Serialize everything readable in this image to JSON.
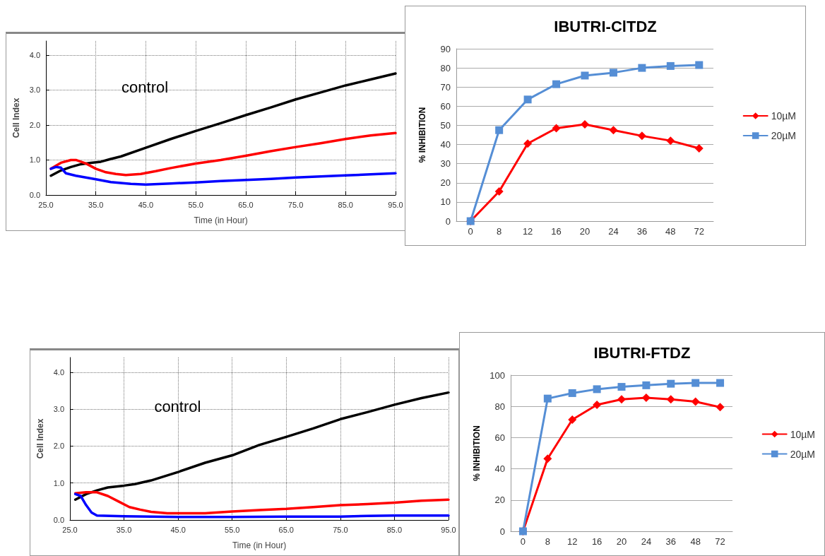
{
  "chart_data": [
    {
      "type": "line",
      "xlabel": "Time (in Hour)",
      "ylabel": "Cell Index",
      "xlim": [
        25,
        95
      ],
      "ylim": [
        0,
        4.4
      ],
      "xticks": [
        {
          "value": 25,
          "label": "25.0"
        },
        {
          "value": 35,
          "label": "35.0"
        },
        {
          "value": 45,
          "label": "45.0"
        },
        {
          "value": 55,
          "label": "55.0"
        },
        {
          "value": 65,
          "label": "65.0"
        },
        {
          "value": 75,
          "label": "75.0"
        },
        {
          "value": 85,
          "label": "85.0"
        },
        {
          "value": 95,
          "label": "95.0"
        }
      ],
      "yticks": [
        {
          "value": 0,
          "label": "0.0"
        },
        {
          "value": 1,
          "label": "1.0"
        },
        {
          "value": 2,
          "label": "2.0"
        },
        {
          "value": 3,
          "label": "3.0"
        },
        {
          "value": 4,
          "label": "4.0"
        }
      ],
      "grid": true,
      "legend": false,
      "marker": "none",
      "annotations": [
        "control"
      ],
      "series": [
        {
          "color": "#000000",
          "x": [
            26,
            28,
            30,
            32,
            34,
            36,
            38,
            40,
            45,
            50,
            55,
            60,
            65,
            70,
            75,
            80,
            85,
            90,
            95
          ],
          "values": [
            0.55,
            0.7,
            0.8,
            0.88,
            0.92,
            0.95,
            1.03,
            1.1,
            1.35,
            1.6,
            1.83,
            2.05,
            2.28,
            2.5,
            2.73,
            2.93,
            3.13,
            3.3,
            3.47
          ]
        },
        {
          "color": "#ff0000",
          "x": [
            26,
            28,
            30,
            31,
            33,
            35,
            37,
            39,
            41,
            44,
            47,
            50,
            55,
            60,
            65,
            70,
            75,
            80,
            85,
            90,
            95
          ],
          "values": [
            0.75,
            0.92,
            1.0,
            1.0,
            0.9,
            0.75,
            0.65,
            0.6,
            0.57,
            0.6,
            0.68,
            0.77,
            0.9,
            1.0,
            1.12,
            1.25,
            1.37,
            1.48,
            1.6,
            1.7,
            1.77
          ]
        },
        {
          "color": "#0000ff",
          "x": [
            26,
            27,
            28,
            29,
            31,
            35,
            38,
            42,
            45,
            50,
            55,
            60,
            65,
            70,
            75,
            80,
            85,
            90,
            95
          ],
          "values": [
            0.75,
            0.8,
            0.78,
            0.62,
            0.55,
            0.45,
            0.37,
            0.32,
            0.3,
            0.33,
            0.36,
            0.4,
            0.43,
            0.46,
            0.5,
            0.53,
            0.56,
            0.59,
            0.62
          ]
        }
      ]
    },
    {
      "type": "line",
      "title": "IBUTRI-ClTDZ",
      "ylabel": "% INHIBITION",
      "categories": [
        "0",
        "8",
        "12",
        "16",
        "20",
        "24",
        "36",
        "48",
        "72"
      ],
      "ylim": [
        0,
        90
      ],
      "yticks": [
        0,
        10,
        20,
        30,
        40,
        50,
        60,
        70,
        80,
        90
      ],
      "grid": "y",
      "legend": "right",
      "series": [
        {
          "name": "10µM",
          "color": "#ff0000",
          "marker": "diamond",
          "values": [
            0,
            15.5,
            40.5,
            48.5,
            50.5,
            47.5,
            44.5,
            42,
            38
          ]
        },
        {
          "name": "20µM",
          "color": "#558ed5",
          "marker": "square",
          "values": [
            0,
            47.5,
            63.5,
            71.5,
            76,
            77.5,
            80,
            81,
            81.5
          ]
        }
      ]
    },
    {
      "type": "line",
      "xlabel": "Time (in Hour)",
      "ylabel": "Cell Index",
      "xlim": [
        25,
        95
      ],
      "ylim": [
        0,
        4.4
      ],
      "xticks": [
        {
          "value": 25,
          "label": "25.0"
        },
        {
          "value": 35,
          "label": "35.0"
        },
        {
          "value": 45,
          "label": "45.0"
        },
        {
          "value": 55,
          "label": "55.0"
        },
        {
          "value": 65,
          "label": "65.0"
        },
        {
          "value": 75,
          "label": "75.0"
        },
        {
          "value": 85,
          "label": "85.0"
        },
        {
          "value": 95,
          "label": "95.0"
        }
      ],
      "yticks": [
        {
          "value": 0,
          "label": "0.0"
        },
        {
          "value": 1,
          "label": "1.0"
        },
        {
          "value": 2,
          "label": "2.0"
        },
        {
          "value": 3,
          "label": "3.0"
        },
        {
          "value": 4,
          "label": "4.0"
        }
      ],
      "grid": true,
      "legend": false,
      "marker": "none",
      "annotations": [
        "control"
      ],
      "series": [
        {
          "color": "#000000",
          "x": [
            26,
            28,
            30,
            32,
            35,
            37,
            40,
            45,
            50,
            55,
            60,
            65,
            70,
            75,
            80,
            85,
            90,
            95
          ],
          "values": [
            0.55,
            0.7,
            0.8,
            0.88,
            0.93,
            0.97,
            1.07,
            1.3,
            1.55,
            1.75,
            2.03,
            2.25,
            2.48,
            2.73,
            2.92,
            3.12,
            3.3,
            3.45
          ]
        },
        {
          "color": "#ff0000",
          "x": [
            26,
            28,
            30,
            32,
            34,
            36,
            38,
            40,
            43,
            50,
            55,
            60,
            65,
            70,
            75,
            80,
            85,
            90,
            95
          ],
          "values": [
            0.72,
            0.75,
            0.75,
            0.65,
            0.5,
            0.35,
            0.28,
            0.22,
            0.18,
            0.18,
            0.23,
            0.27,
            0.3,
            0.35,
            0.4,
            0.43,
            0.47,
            0.52,
            0.55
          ]
        },
        {
          "color": "#0000ff",
          "x": [
            26,
            27,
            28,
            29,
            30,
            35,
            45,
            55,
            65,
            75,
            80,
            85,
            95
          ],
          "values": [
            0.7,
            0.65,
            0.4,
            0.2,
            0.12,
            0.1,
            0.08,
            0.08,
            0.09,
            0.09,
            0.11,
            0.12,
            0.12
          ]
        }
      ]
    },
    {
      "type": "line",
      "title": "IBUTRI-FTDZ",
      "ylabel": "% INHIBITION",
      "categories": [
        "0",
        "8",
        "12",
        "16",
        "20",
        "24",
        "36",
        "48",
        "72"
      ],
      "ylim": [
        0,
        100
      ],
      "yticks": [
        0,
        20,
        40,
        60,
        80,
        100
      ],
      "grid": "y",
      "legend": "right",
      "series": [
        {
          "name": "10µM",
          "color": "#ff0000",
          "marker": "diamond",
          "values": [
            0,
            46.5,
            71.5,
            81,
            84.5,
            85.5,
            84.5,
            83,
            79.5
          ]
        },
        {
          "name": "20µM",
          "color": "#558ed5",
          "marker": "square",
          "values": [
            0,
            85,
            88.5,
            91,
            92.5,
            93.5,
            94.5,
            95,
            95
          ]
        }
      ]
    }
  ]
}
